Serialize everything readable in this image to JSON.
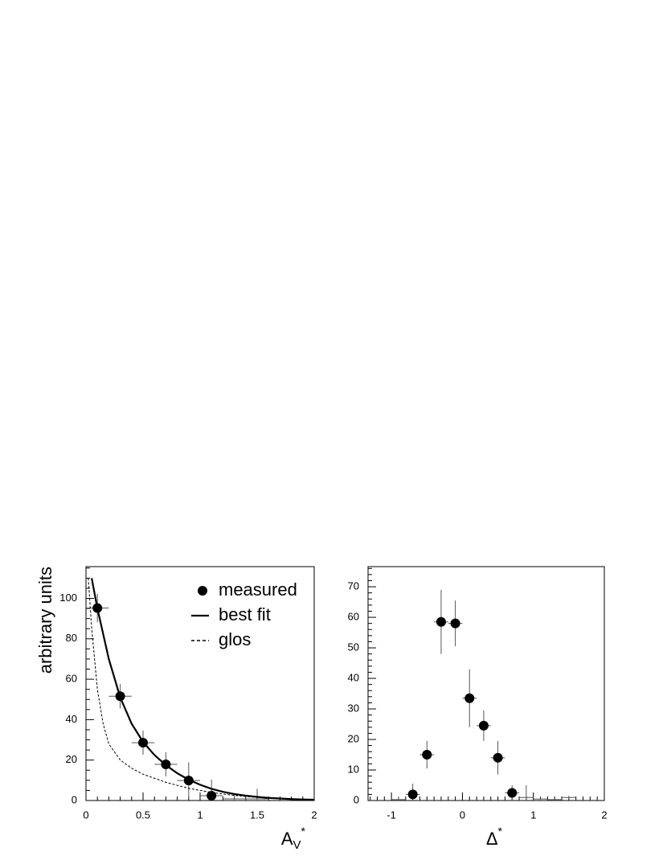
{
  "chart_data": [
    {
      "type": "errorbar",
      "y_label": "arbitrary units",
      "x_label": "A",
      "x_label_sub": "V",
      "x_label_sup": "*",
      "xlim": [
        0,
        2
      ],
      "ylim": [
        0,
        115.7
      ],
      "xticks": [
        0,
        0.5,
        1,
        1.5,
        2
      ],
      "yticks": [
        0,
        20,
        40,
        60,
        80,
        100
      ],
      "xminor_ticks": [
        0.1,
        0.2,
        0.3,
        0.4,
        0.6,
        0.7,
        0.8,
        0.9,
        1.1,
        1.2,
        1.3,
        1.4,
        1.6,
        1.7,
        1.8,
        1.9
      ],
      "yminor_ticks": [
        5,
        10,
        15,
        25,
        30,
        35,
        45,
        50,
        55,
        65,
        70,
        75,
        85,
        90,
        95,
        105,
        110,
        115
      ],
      "legend": "upper right",
      "series": [
        {
          "name": "measured",
          "style": "marker",
          "color": "#000000",
          "x": [
            0.1,
            0.3,
            0.5,
            0.7,
            0.9,
            1.1
          ],
          "values": [
            95.2,
            51.6,
            28.6,
            17.9,
            9.9,
            2.4
          ],
          "xerr": [
            0.1,
            0.1,
            0.1,
            0.1,
            0.1,
            0.1
          ],
          "yerr": [
            7,
            6,
            6,
            6,
            9,
            8
          ]
        },
        {
          "style": "errorbar",
          "color": "#555555",
          "x": [
            1.3,
            1.5
          ],
          "values": [
            0.8,
            0.8
          ],
          "xerr": [
            0.1,
            0.1
          ],
          "yerr": [
            2,
            5
          ]
        },
        {
          "name": "best fit",
          "style": "solid",
          "color": "#000000",
          "x": [
            0.05,
            0.1,
            0.2,
            0.3,
            0.4,
            0.5,
            0.6,
            0.7,
            0.8,
            0.9,
            1.0,
            1.1,
            1.2,
            1.3,
            1.4,
            1.5,
            1.6,
            1.7,
            1.8,
            1.9,
            2.0
          ],
          "values": [
            110,
            95,
            70,
            51,
            38,
            29,
            22.5,
            17.5,
            13.5,
            10.3,
            7.8,
            5.8,
            4.3,
            3.2,
            2.4,
            1.8,
            1.3,
            1,
            0.7,
            0.5,
            0.4
          ]
        },
        {
          "name": "glos",
          "style": "dashed",
          "color": "#000000",
          "x": [
            0.02,
            0.05,
            0.1,
            0.15,
            0.2,
            0.3,
            0.4,
            0.5,
            0.7,
            0.9,
            1.1,
            1.3,
            1.5,
            1.75,
            2.0
          ],
          "values": [
            110,
            85,
            55,
            38,
            28,
            20,
            16,
            13,
            9,
            6,
            4,
            2.5,
            1.5,
            0.8,
            0.5
          ]
        }
      ]
    },
    {
      "type": "errorbar",
      "x_label": "Δ",
      "x_label_sup": "*",
      "xlim": [
        -1.33,
        2
      ],
      "ylim": [
        0,
        76.6
      ],
      "xticks": [
        -1,
        0,
        1,
        2
      ],
      "yticks": [
        0,
        10,
        20,
        30,
        40,
        50,
        60,
        70
      ],
      "xminor_ticks": [
        -1.3,
        -1.2,
        -1.1,
        -0.9,
        -0.8,
        -0.7,
        -0.6,
        -0.5,
        -0.4,
        -0.3,
        -0.2,
        -0.1,
        0.1,
        0.2,
        0.3,
        0.4,
        0.5,
        0.6,
        0.7,
        0.8,
        0.9,
        1.1,
        1.2,
        1.3,
        1.4,
        1.5,
        1.6,
        1.7,
        1.8,
        1.9
      ],
      "yminor_ticks": [
        2,
        4,
        6,
        8,
        12,
        14,
        16,
        18,
        22,
        24,
        26,
        28,
        32,
        34,
        36,
        38,
        42,
        44,
        46,
        48,
        52,
        54,
        56,
        58,
        62,
        64,
        66,
        68,
        72,
        74,
        76
      ],
      "series": [
        {
          "style": "marker",
          "color": "#000000",
          "x": [
            -0.7,
            -0.5,
            -0.3,
            -0.1,
            0.1,
            0.3,
            0.5,
            0.7
          ],
          "values": [
            2,
            15,
            58.5,
            58,
            33.5,
            24.5,
            14,
            2.5
          ],
          "xerr": [
            0.1,
            0.1,
            0.1,
            0.1,
            0.1,
            0.1,
            0.1,
            0.1
          ],
          "yerr": [
            3.5,
            4.5,
            10.5,
            7.5,
            9.5,
            5,
            5.5,
            2.5
          ]
        },
        {
          "style": "errorbar",
          "color": "#555555",
          "x": [
            -0.9,
            0.9,
            1.1,
            1.3,
            1.5
          ],
          "values": [
            0.3,
            1,
            0.5,
            0.3,
            1
          ],
          "xerr": [
            0.1,
            0.1,
            0.1,
            0.1,
            0.1
          ],
          "yerr": [
            1,
            4,
            0.5,
            0.3,
            0.5
          ]
        }
      ]
    }
  ]
}
